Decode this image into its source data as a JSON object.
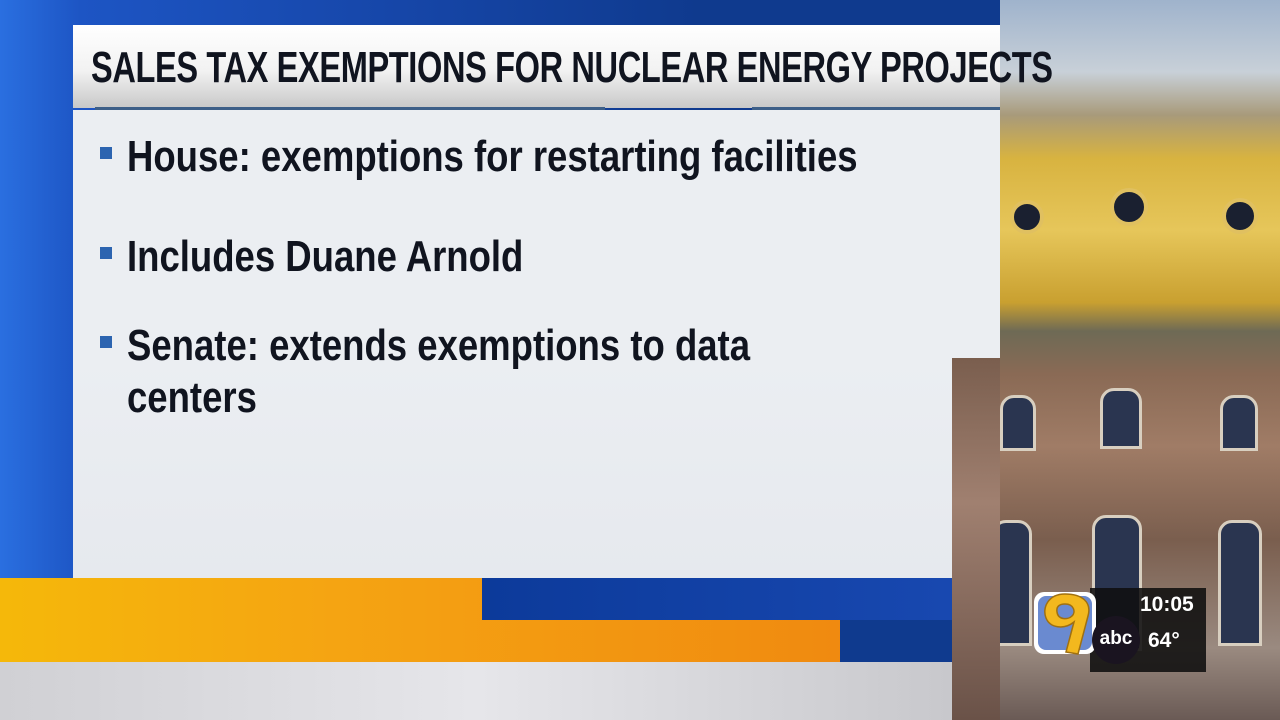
{
  "graphic": {
    "title": "SALES TAX EXEMPTIONS FOR NUCLEAR ENERGY PROJECTS",
    "bullets": [
      {
        "lines": [
          "House: exemptions for restarting facilities"
        ]
      },
      {
        "lines": [
          "Includes Duane Arnold"
        ]
      },
      {
        "lines": [
          "Senate: extends exemptions to data",
          "centers"
        ]
      }
    ]
  },
  "station_bug": {
    "channel": "9",
    "network": "abc",
    "time": "10:05",
    "temperature": "64°"
  },
  "colors": {
    "accent_blue": "#1646a8",
    "accent_orange": "#f5a412",
    "bullet": "#2c64b0"
  }
}
